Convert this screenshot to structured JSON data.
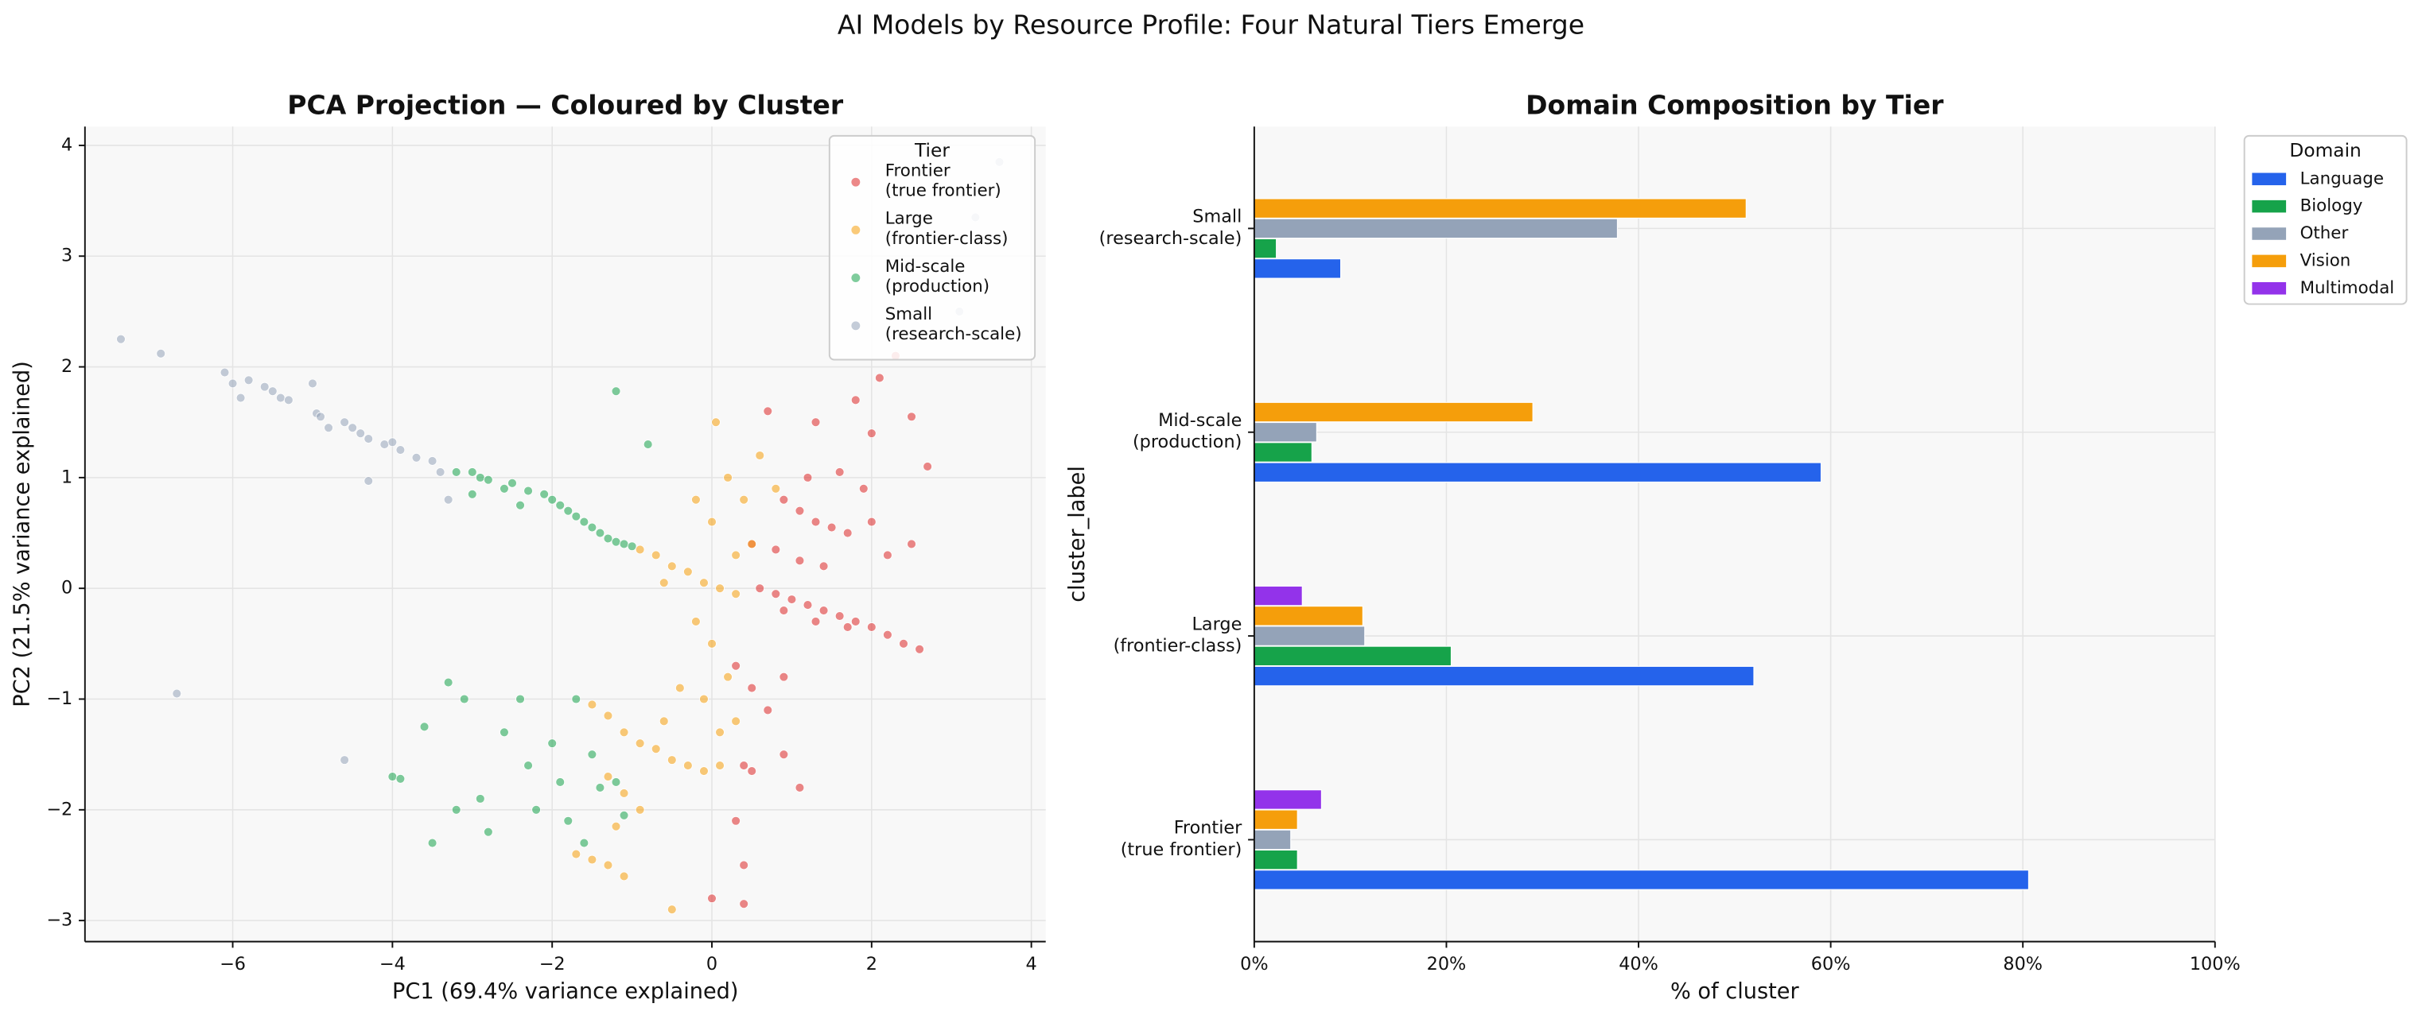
{
  "title": "AI Models by Resource Profile: Four Natural Tiers Emerge",
  "chart_data": [
    {
      "type": "scatter",
      "title": "PCA Projection — Coloured by Cluster",
      "xlabel": "PC1 (69.4% variance explained)",
      "ylabel": "PC2 (21.5% variance explained)",
      "xlim": [
        -7.85,
        4.18
      ],
      "ylim": [
        -3.19,
        4.17
      ],
      "xticks": [
        {
          "value": -6,
          "label": "−6"
        },
        {
          "value": -4,
          "label": "−4"
        },
        {
          "value": -2,
          "label": "−2"
        },
        0,
        2,
        4
      ],
      "yticks": [
        {
          "value": -3,
          "label": "−3"
        },
        {
          "value": -2,
          "label": "−2"
        },
        {
          "value": -1,
          "label": "−1"
        },
        0,
        1,
        2,
        3,
        4
      ],
      "grid": true,
      "legend_title": "Tier",
      "legend": "upper right",
      "series": [
        {
          "name": "Frontier\n(true frontier)",
          "color": "#dc2626",
          "x": [
            0.6,
            0.8,
            1.0,
            1.2,
            1.4,
            1.6,
            1.8,
            2.0,
            2.2,
            2.4,
            2.6,
            0.9,
            1.3,
            1.7,
            0.5,
            0.8,
            1.1,
            1.4,
            0.9,
            1.1,
            1.3,
            1.5,
            1.7,
            1.2,
            1.6,
            1.9,
            2.0,
            2.1,
            2.3,
            2.5,
            2.7,
            2.2,
            2.5,
            0.7,
            1.3,
            1.8,
            0.3,
            0.5,
            0.7,
            0.9,
            1.1,
            0.4,
            0.5,
            0.3,
            0.4,
            0.4,
            0.0,
            0.9,
            2.0
          ],
          "y": [
            0.0,
            -0.05,
            -0.1,
            -0.15,
            -0.2,
            -0.25,
            -0.3,
            -0.35,
            -0.42,
            -0.5,
            -0.55,
            -0.2,
            -0.3,
            -0.35,
            0.4,
            0.35,
            0.25,
            0.2,
            0.8,
            0.7,
            0.6,
            0.55,
            0.5,
            1.0,
            1.05,
            0.9,
            1.4,
            1.9,
            2.1,
            1.55,
            1.1,
            0.3,
            0.4,
            1.6,
            1.5,
            1.7,
            -0.7,
            -0.9,
            -1.1,
            -1.5,
            -1.8,
            -1.6,
            -1.65,
            -2.1,
            -2.5,
            -2.85,
            -2.8,
            -0.8,
            0.6
          ]
        },
        {
          "name": "Large\n(frontier-class)",
          "color": "#f59e0b",
          "x": [
            -0.9,
            -0.7,
            -0.5,
            -0.3,
            -0.1,
            0.1,
            0.3,
            -0.6,
            0.0,
            0.2,
            0.4,
            0.6,
            0.8,
            0.05,
            0.5,
            0.3,
            -0.2,
            -1.5,
            -1.3,
            -1.1,
            -0.9,
            -0.7,
            -0.5,
            -0.3,
            -0.1,
            0.1,
            -1.3,
            -1.1,
            -0.9,
            -1.7,
            -1.5,
            -1.3,
            -1.1,
            -0.6,
            -0.2,
            0.0,
            0.2,
            -0.4,
            -0.1,
            0.3,
            0.1,
            -1.2,
            -0.5
          ],
          "y": [
            0.35,
            0.3,
            0.2,
            0.15,
            0.05,
            0.0,
            -0.05,
            0.05,
            0.6,
            1.0,
            0.8,
            1.2,
            0.9,
            1.5,
            0.4,
            0.3,
            0.8,
            -1.05,
            -1.15,
            -1.3,
            -1.4,
            -1.45,
            -1.55,
            -1.6,
            -1.65,
            -1.6,
            -1.7,
            -1.85,
            -2.0,
            -2.4,
            -2.45,
            -2.5,
            -2.6,
            -1.2,
            -0.3,
            -0.5,
            -0.8,
            -0.9,
            -1.0,
            -1.2,
            -1.3,
            -2.15,
            -2.9
          ]
        },
        {
          "name": "Mid-scale\n(production)",
          "color": "#16a34a",
          "x": [
            -3.2,
            -3.0,
            -2.9,
            -2.8,
            -2.6,
            -2.5,
            -2.3,
            -2.1,
            -2.0,
            -1.9,
            -1.8,
            -1.7,
            -1.6,
            -1.5,
            -1.4,
            -1.3,
            -1.2,
            -1.1,
            -1.0,
            -2.4,
            -3.0,
            -1.2,
            -0.8,
            -4.0,
            -3.9,
            -3.6,
            -3.3,
            -3.1,
            -3.2,
            -2.9,
            -2.8,
            -2.6,
            -2.4,
            -2.3,
            -2.2,
            -2.0,
            -1.9,
            -1.8,
            -1.7,
            -1.6,
            -1.5,
            -1.4,
            -1.2,
            -1.1,
            -3.5
          ],
          "y": [
            1.05,
            1.05,
            1.0,
            0.98,
            0.9,
            0.95,
            0.88,
            0.85,
            0.8,
            0.75,
            0.7,
            0.65,
            0.6,
            0.55,
            0.5,
            0.45,
            0.42,
            0.4,
            0.38,
            0.75,
            0.85,
            1.78,
            1.3,
            -1.7,
            -1.72,
            -1.25,
            -0.85,
            -1.0,
            -2.0,
            -1.9,
            -2.2,
            -1.3,
            -1.0,
            -1.6,
            -2.0,
            -1.4,
            -1.75,
            -2.1,
            -1.0,
            -2.3,
            -1.5,
            -1.8,
            -1.75,
            -2.05,
            -2.3
          ]
        },
        {
          "name": "Small\n(research-scale)",
          "color": "#94a3b8",
          "x": [
            -7.4,
            -6.9,
            -6.1,
            -6.0,
            -5.9,
            -5.8,
            -5.6,
            -5.5,
            -5.4,
            -5.3,
            -5.0,
            -4.95,
            -4.9,
            -4.8,
            -4.6,
            -4.5,
            -4.4,
            -4.3,
            -4.1,
            -4.0,
            -3.9,
            -3.7,
            -3.5,
            -3.4,
            -3.3,
            -4.3,
            -6.7,
            -4.6,
            3.1,
            3.6,
            3.3
          ],
          "y": [
            2.25,
            2.12,
            1.95,
            1.85,
            1.72,
            1.88,
            1.82,
            1.78,
            1.72,
            1.7,
            1.85,
            1.58,
            1.55,
            1.45,
            1.5,
            1.45,
            1.4,
            1.35,
            1.3,
            1.32,
            1.25,
            1.18,
            1.15,
            1.05,
            0.8,
            0.97,
            -0.95,
            -1.55,
            2.5,
            3.85,
            3.35
          ]
        }
      ]
    },
    {
      "type": "barh",
      "title": "Domain Composition by Tier",
      "xlabel": "% of cluster",
      "ylabel": "cluster_label",
      "categories": [
        "Frontier\n(true frontier)",
        "Large\n(frontier-class)",
        "Mid-scale\n(production)",
        "Small\n(research-scale)"
      ],
      "xlim": [
        0,
        100
      ],
      "xticks": [
        {
          "value": 0,
          "label": "0%"
        },
        {
          "value": 20,
          "label": "20%"
        },
        {
          "value": 40,
          "label": "40%"
        },
        {
          "value": 60,
          "label": "60%"
        },
        {
          "value": 80,
          "label": "80%"
        },
        {
          "value": 100,
          "label": "100%"
        }
      ],
      "grid": true,
      "legend_title": "Domain",
      "legend": "outside upper right",
      "series": [
        {
          "name": "Language",
          "color": "#2563eb",
          "values": [
            80.6,
            52,
            59,
            9
          ]
        },
        {
          "name": "Biology",
          "color": "#16a34a",
          "values": [
            4.5,
            20.5,
            6,
            2.3
          ]
        },
        {
          "name": "Other",
          "color": "#94a3b8",
          "values": [
            3.8,
            11.5,
            6.5,
            37.8
          ]
        },
        {
          "name": "Vision",
          "color": "#f59e0b",
          "values": [
            4.5,
            11.3,
            29,
            51.2
          ]
        },
        {
          "name": "Multimodal",
          "color": "#9333ea",
          "values": [
            7,
            5,
            0,
            0
          ]
        }
      ]
    }
  ]
}
